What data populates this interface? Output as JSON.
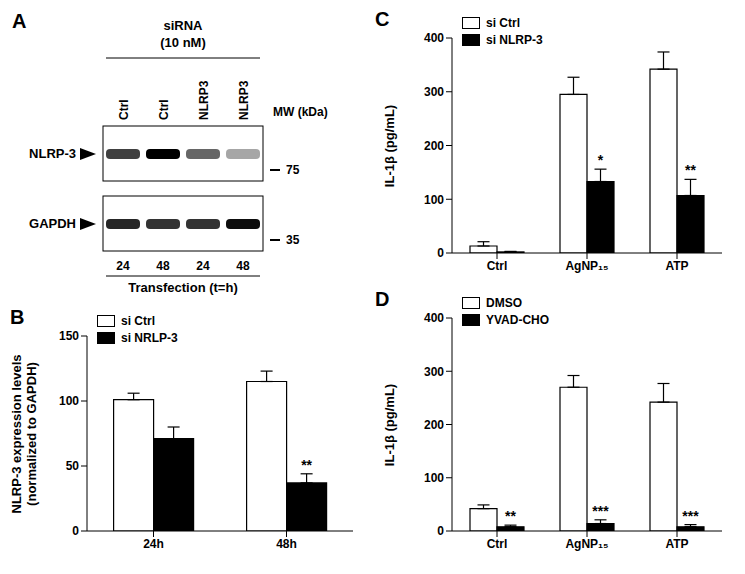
{
  "blot": {
    "panel_label": "A",
    "header": [
      "siRNA",
      "(10 nM)"
    ],
    "lanes": [
      "Ctrl",
      "Ctrl",
      "NLRP3",
      "NLRP3"
    ],
    "mw_label": "MW (kDa)",
    "rows": [
      {
        "label": "NLRP-3",
        "mw": 75,
        "intensity": [
          0.75,
          1.0,
          0.6,
          0.35
        ]
      },
      {
        "label": "GAPDH",
        "mw": 35,
        "intensity": [
          0.85,
          0.8,
          0.8,
          0.95
        ]
      }
    ],
    "times": [
      24,
      48,
      24,
      48
    ],
    "time_label": "Transfection (t=h)"
  },
  "chart_data": [
    {
      "type": "bar",
      "panel_label": "B",
      "ylabel": [
        "NLRP-3 expression levels",
        "(normalized to GAPDH)"
      ],
      "categories": [
        "24h",
        "48h"
      ],
      "series": [
        {
          "name": "si Ctrl",
          "color": "#ffffff",
          "values": [
            101,
            115
          ],
          "errors": [
            5,
            8
          ],
          "significance": [
            null,
            null
          ]
        },
        {
          "name": "si NRLP-3",
          "color": "#000000",
          "values": [
            71,
            37
          ],
          "errors": [
            9,
            7
          ],
          "significance": [
            null,
            "**"
          ]
        }
      ],
      "ylim": [
        0,
        150
      ],
      "yticks": [
        0,
        50,
        100,
        150
      ],
      "legend": "upper left"
    },
    {
      "type": "bar",
      "panel_label": "C",
      "ylabel": [
        "IL-1β (pg/mL)"
      ],
      "categories": [
        "Ctrl",
        "AgNP₁₅",
        "ATP"
      ],
      "series": [
        {
          "name": "si Ctrl",
          "color": "#ffffff",
          "values": [
            13,
            295,
            342
          ],
          "errors": [
            8,
            32,
            32
          ],
          "significance": [
            null,
            null,
            null
          ]
        },
        {
          "name": "si NLRP-3",
          "color": "#000000",
          "values": [
            2,
            133,
            107
          ],
          "errors": [
            1,
            23,
            30
          ],
          "significance": [
            null,
            "*",
            "**"
          ]
        }
      ],
      "ylim": [
        0,
        400
      ],
      "yticks": [
        0,
        100,
        200,
        300,
        400
      ],
      "legend": "upper left"
    },
    {
      "type": "bar",
      "panel_label": "D",
      "ylabel": [
        "IL-1β (pg/mL)"
      ],
      "categories": [
        "Ctrl",
        "AgNP₁₅",
        "ATP"
      ],
      "series": [
        {
          "name": "DMSO",
          "color": "#ffffff",
          "values": [
            42,
            270,
            242
          ],
          "errors": [
            7,
            22,
            35
          ],
          "significance": [
            null,
            null,
            null
          ]
        },
        {
          "name": "YVAD-CHO",
          "color": "#000000",
          "values": [
            8,
            14,
            8
          ],
          "errors": [
            3,
            7,
            4
          ],
          "significance": [
            "**",
            "***",
            "***"
          ]
        }
      ],
      "ylim": [
        0,
        400
      ],
      "yticks": [
        0,
        100,
        200,
        300,
        400
      ],
      "legend": "upper left"
    }
  ]
}
